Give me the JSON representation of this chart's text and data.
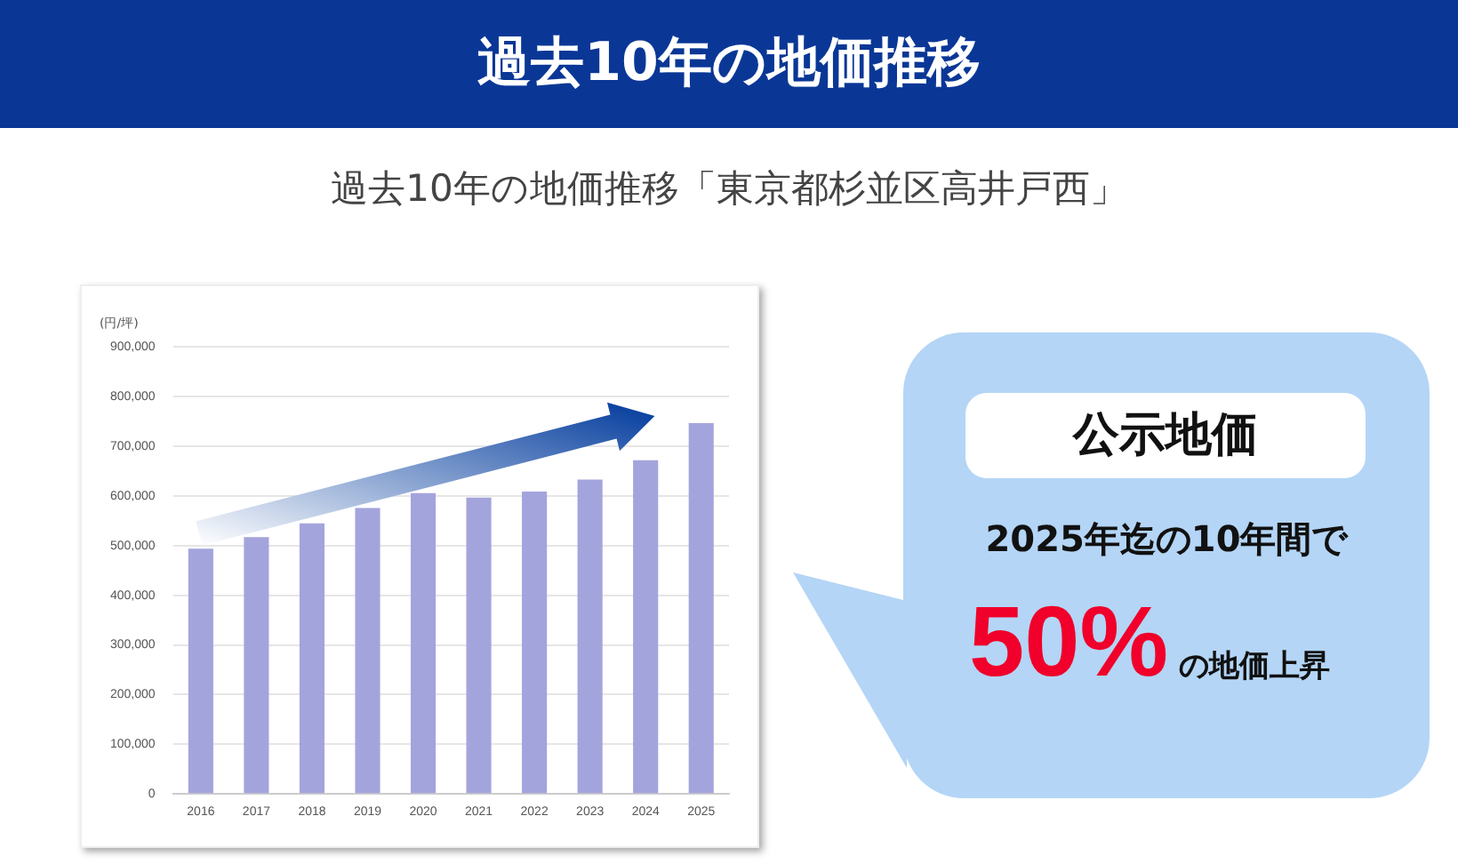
{
  "chart_data": {
    "type": "bar",
    "title": "過去10年の地価推移",
    "subtitle": "過去10年の地価推移「東京都杉並区高井戸西」",
    "ylabel": "(円/坪)",
    "categories": [
      "2016",
      "2017",
      "2018",
      "2019",
      "2020",
      "2021",
      "2022",
      "2023",
      "2024",
      "2025"
    ],
    "values": [
      494000,
      517000,
      545000,
      576000,
      606000,
      597000,
      609000,
      633000,
      672000,
      747000
    ],
    "color": "#a4a4dd",
    "ylim": [
      0,
      900000
    ],
    "yticks": [
      0,
      {
        "value": 100000,
        "label": "100,000"
      },
      {
        "value": 200000,
        "label": "200,000"
      },
      {
        "value": 300000,
        "label": "300,000"
      },
      {
        "value": 400000,
        "label": "400,000"
      },
      {
        "value": 500000,
        "label": "500,000"
      },
      {
        "value": 600000,
        "label": "600,000"
      },
      {
        "value": 700000,
        "label": "700,000"
      },
      {
        "value": 800000,
        "label": "800,000"
      },
      {
        "value": 900000,
        "label": "900,000"
      }
    ],
    "grid": "y",
    "legend": false,
    "annotations": [
      "公示地価",
      "2025年迄の10年間で",
      "50%",
      "の地価上昇"
    ]
  }
}
